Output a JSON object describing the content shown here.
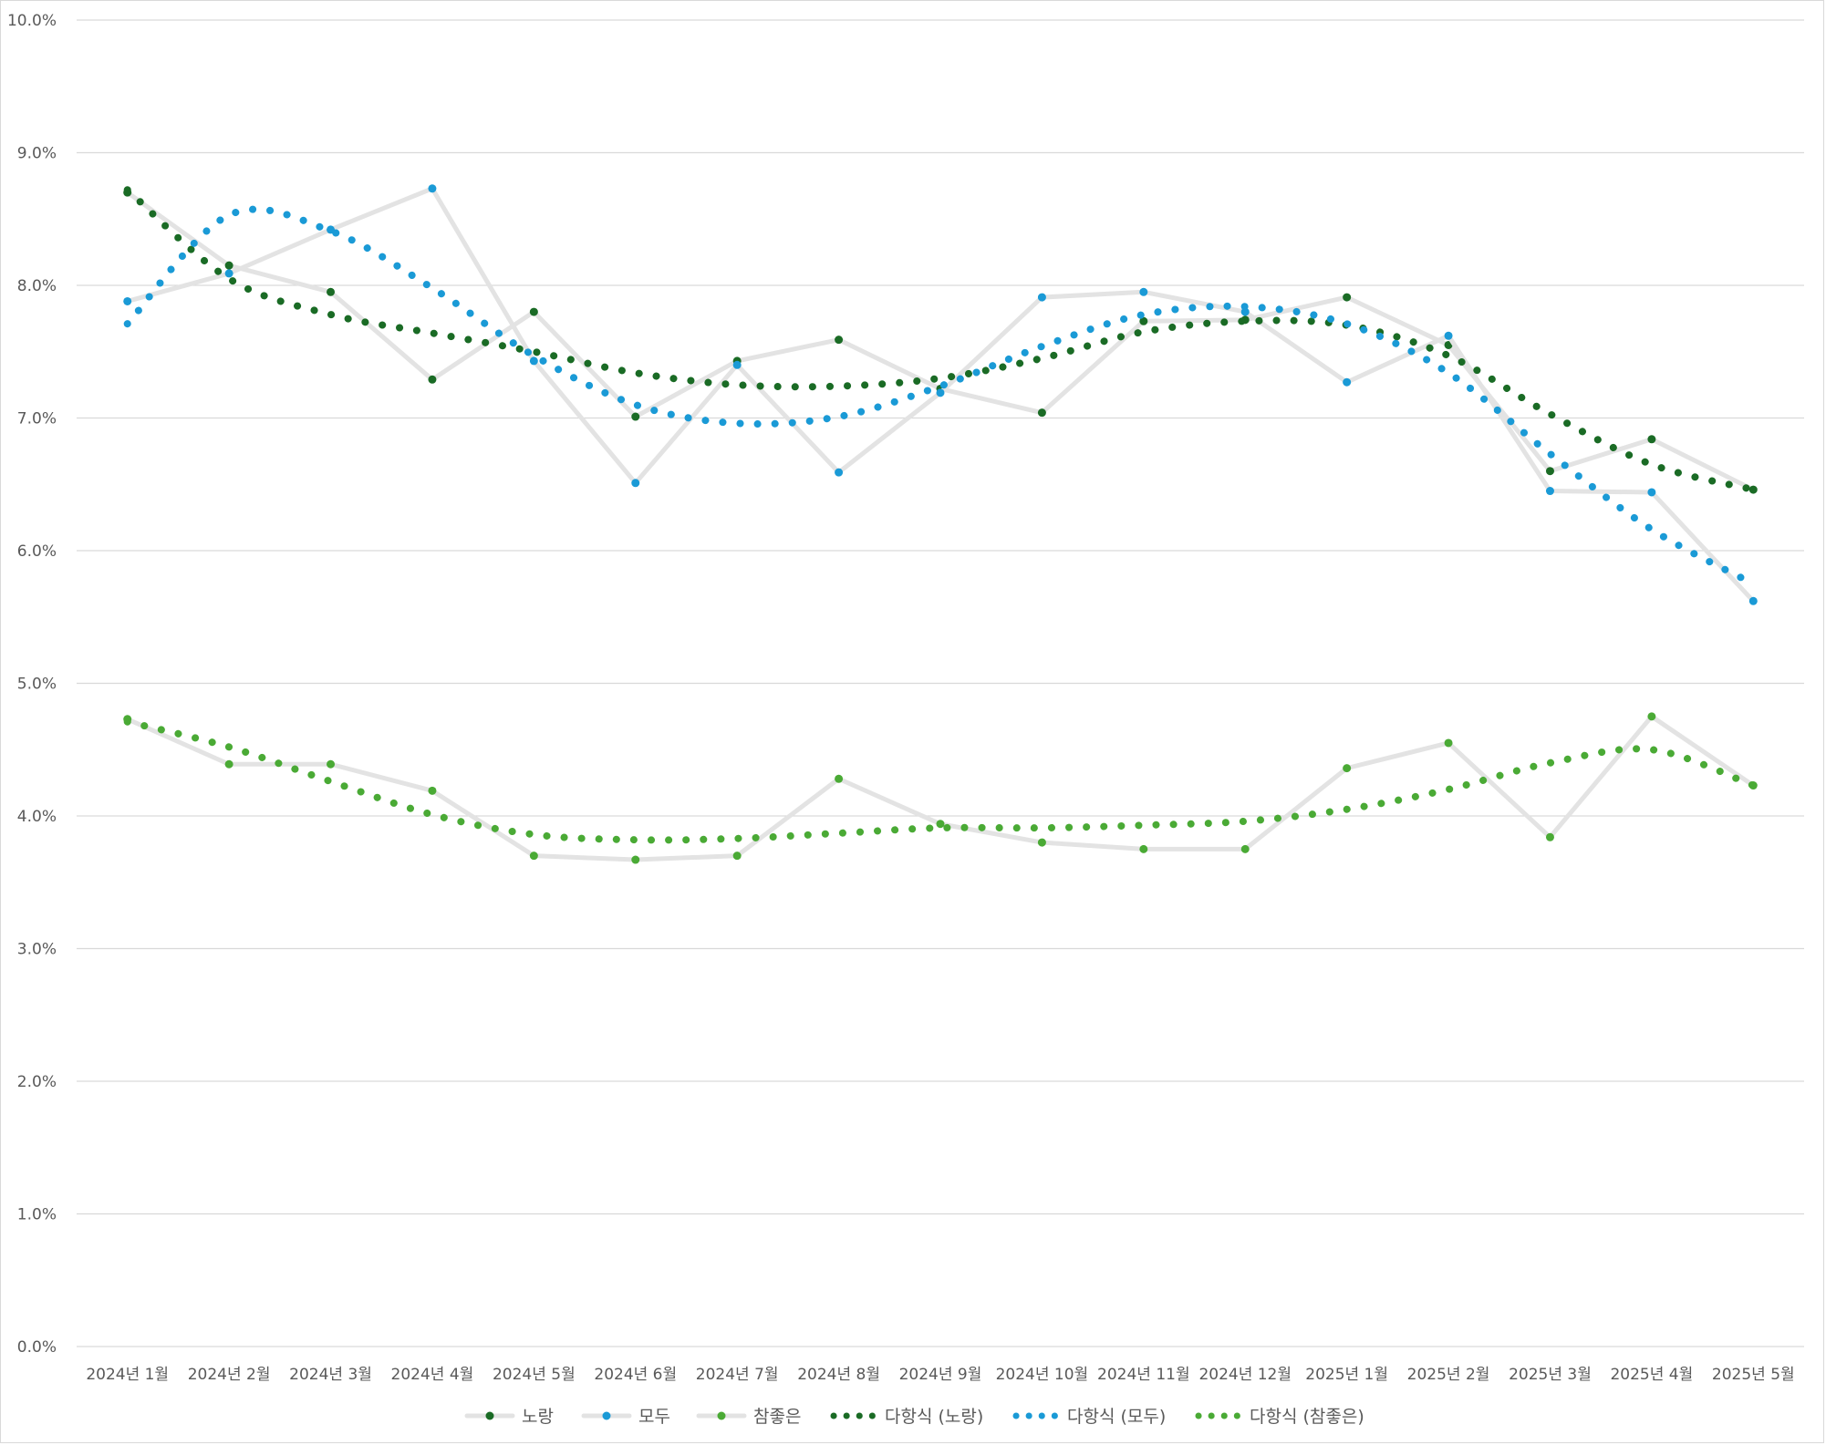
{
  "chart_data": {
    "type": "line",
    "categories": [
      "2024년 1월",
      "2024년 2월",
      "2024년 3월",
      "2024년 4월",
      "2024년 5월",
      "2024년 6월",
      "2024년 7월",
      "2024년 8월",
      "2024년 9월",
      "2024년 10월",
      "2024년 11월",
      "2024년 12월",
      "2025년 1월",
      "2025년 2월",
      "2025년 3월",
      "2025년 4월",
      "2025년 5월"
    ],
    "ylim": [
      0,
      10
    ],
    "yticks": [
      "0.0%",
      "1.0%",
      "2.0%",
      "3.0%",
      "4.0%",
      "5.0%",
      "6.0%",
      "7.0%",
      "8.0%",
      "9.0%",
      "10.0%"
    ],
    "grid": true,
    "legend_position": "bottom",
    "series": [
      {
        "name": "노랑",
        "color": "#1a6b25",
        "values": [
          8.7,
          8.15,
          7.95,
          7.29,
          7.8,
          7.01,
          7.43,
          7.59,
          7.22,
          7.04,
          7.73,
          7.74,
          7.91,
          7.55,
          6.6,
          6.84,
          6.46
        ]
      },
      {
        "name": "모두",
        "color": "#1a9ad6",
        "values": [
          7.88,
          8.09,
          8.42,
          8.73,
          7.43,
          6.51,
          7.4,
          6.59,
          7.19,
          7.91,
          7.95,
          7.8,
          7.27,
          7.62,
          6.45,
          6.44,
          5.62
        ]
      },
      {
        "name": "참좋은",
        "color": "#4aaa35",
        "values": [
          4.73,
          4.39,
          4.39,
          4.19,
          3.7,
          3.67,
          3.7,
          4.28,
          3.94,
          3.8,
          3.75,
          3.75,
          4.36,
          4.55,
          3.84,
          4.75,
          4.23
        ]
      },
      {
        "name": "다항식 (노랑)",
        "color": "#1a6b25",
        "trend_of": 0,
        "values": [
          8.72,
          8.05,
          7.78,
          7.64,
          7.5,
          7.34,
          7.25,
          7.24,
          7.3,
          7.45,
          7.65,
          7.73,
          7.7,
          7.47,
          7.03,
          6.65,
          6.46
        ]
      },
      {
        "name": "다항식 (모두)",
        "color": "#1a9ad6",
        "trend_of": 1,
        "values": [
          7.71,
          8.53,
          8.41,
          7.98,
          7.47,
          7.1,
          6.96,
          7.01,
          7.24,
          7.54,
          7.78,
          7.84,
          7.71,
          7.34,
          6.73,
          6.16,
          5.75
        ]
      },
      {
        "name": "다항식 (참좋은)",
        "color": "#4aaa35",
        "trend_of": 2,
        "values": [
          4.71,
          4.52,
          4.26,
          4.01,
          3.86,
          3.82,
          3.83,
          3.87,
          3.91,
          3.91,
          3.93,
          3.96,
          4.05,
          4.2,
          4.4,
          4.5,
          4.23
        ]
      }
    ]
  }
}
